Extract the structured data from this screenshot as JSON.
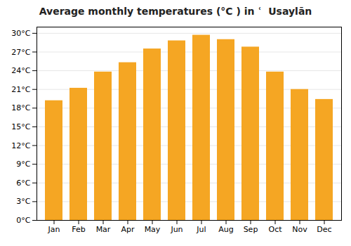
{
  "chart_data": {
    "type": "bar",
    "title": "Average monthly temperatures (°C ) in ʿ  Usaylān",
    "categories": [
      "Jan",
      "Feb",
      "Mar",
      "Apr",
      "May",
      "Jun",
      "Jul",
      "Aug",
      "Sep",
      "Oct",
      "Nov",
      "Dec"
    ],
    "values": [
      19.2,
      21.2,
      23.8,
      25.3,
      27.5,
      28.8,
      29.7,
      29.0,
      27.8,
      23.8,
      21.0,
      19.4
    ],
    "color": "#F5A623",
    "ylim": [
      0,
      31
    ],
    "yticks": [
      {
        "value": 0,
        "label": "0°C"
      },
      {
        "value": 3,
        "label": "3°C"
      },
      {
        "value": 6,
        "label": "6°C"
      },
      {
        "value": 9,
        "label": "9°C"
      },
      {
        "value": 12,
        "label": "12°C"
      },
      {
        "value": 15,
        "label": "15°C"
      },
      {
        "value": 18,
        "label": "18°C"
      },
      {
        "value": 21,
        "label": "21°C"
      },
      {
        "value": 24,
        "label": "24°C"
      },
      {
        "value": 27,
        "label": "27°C"
      },
      {
        "value": 30,
        "label": "30°C"
      }
    ],
    "grid": true
  }
}
